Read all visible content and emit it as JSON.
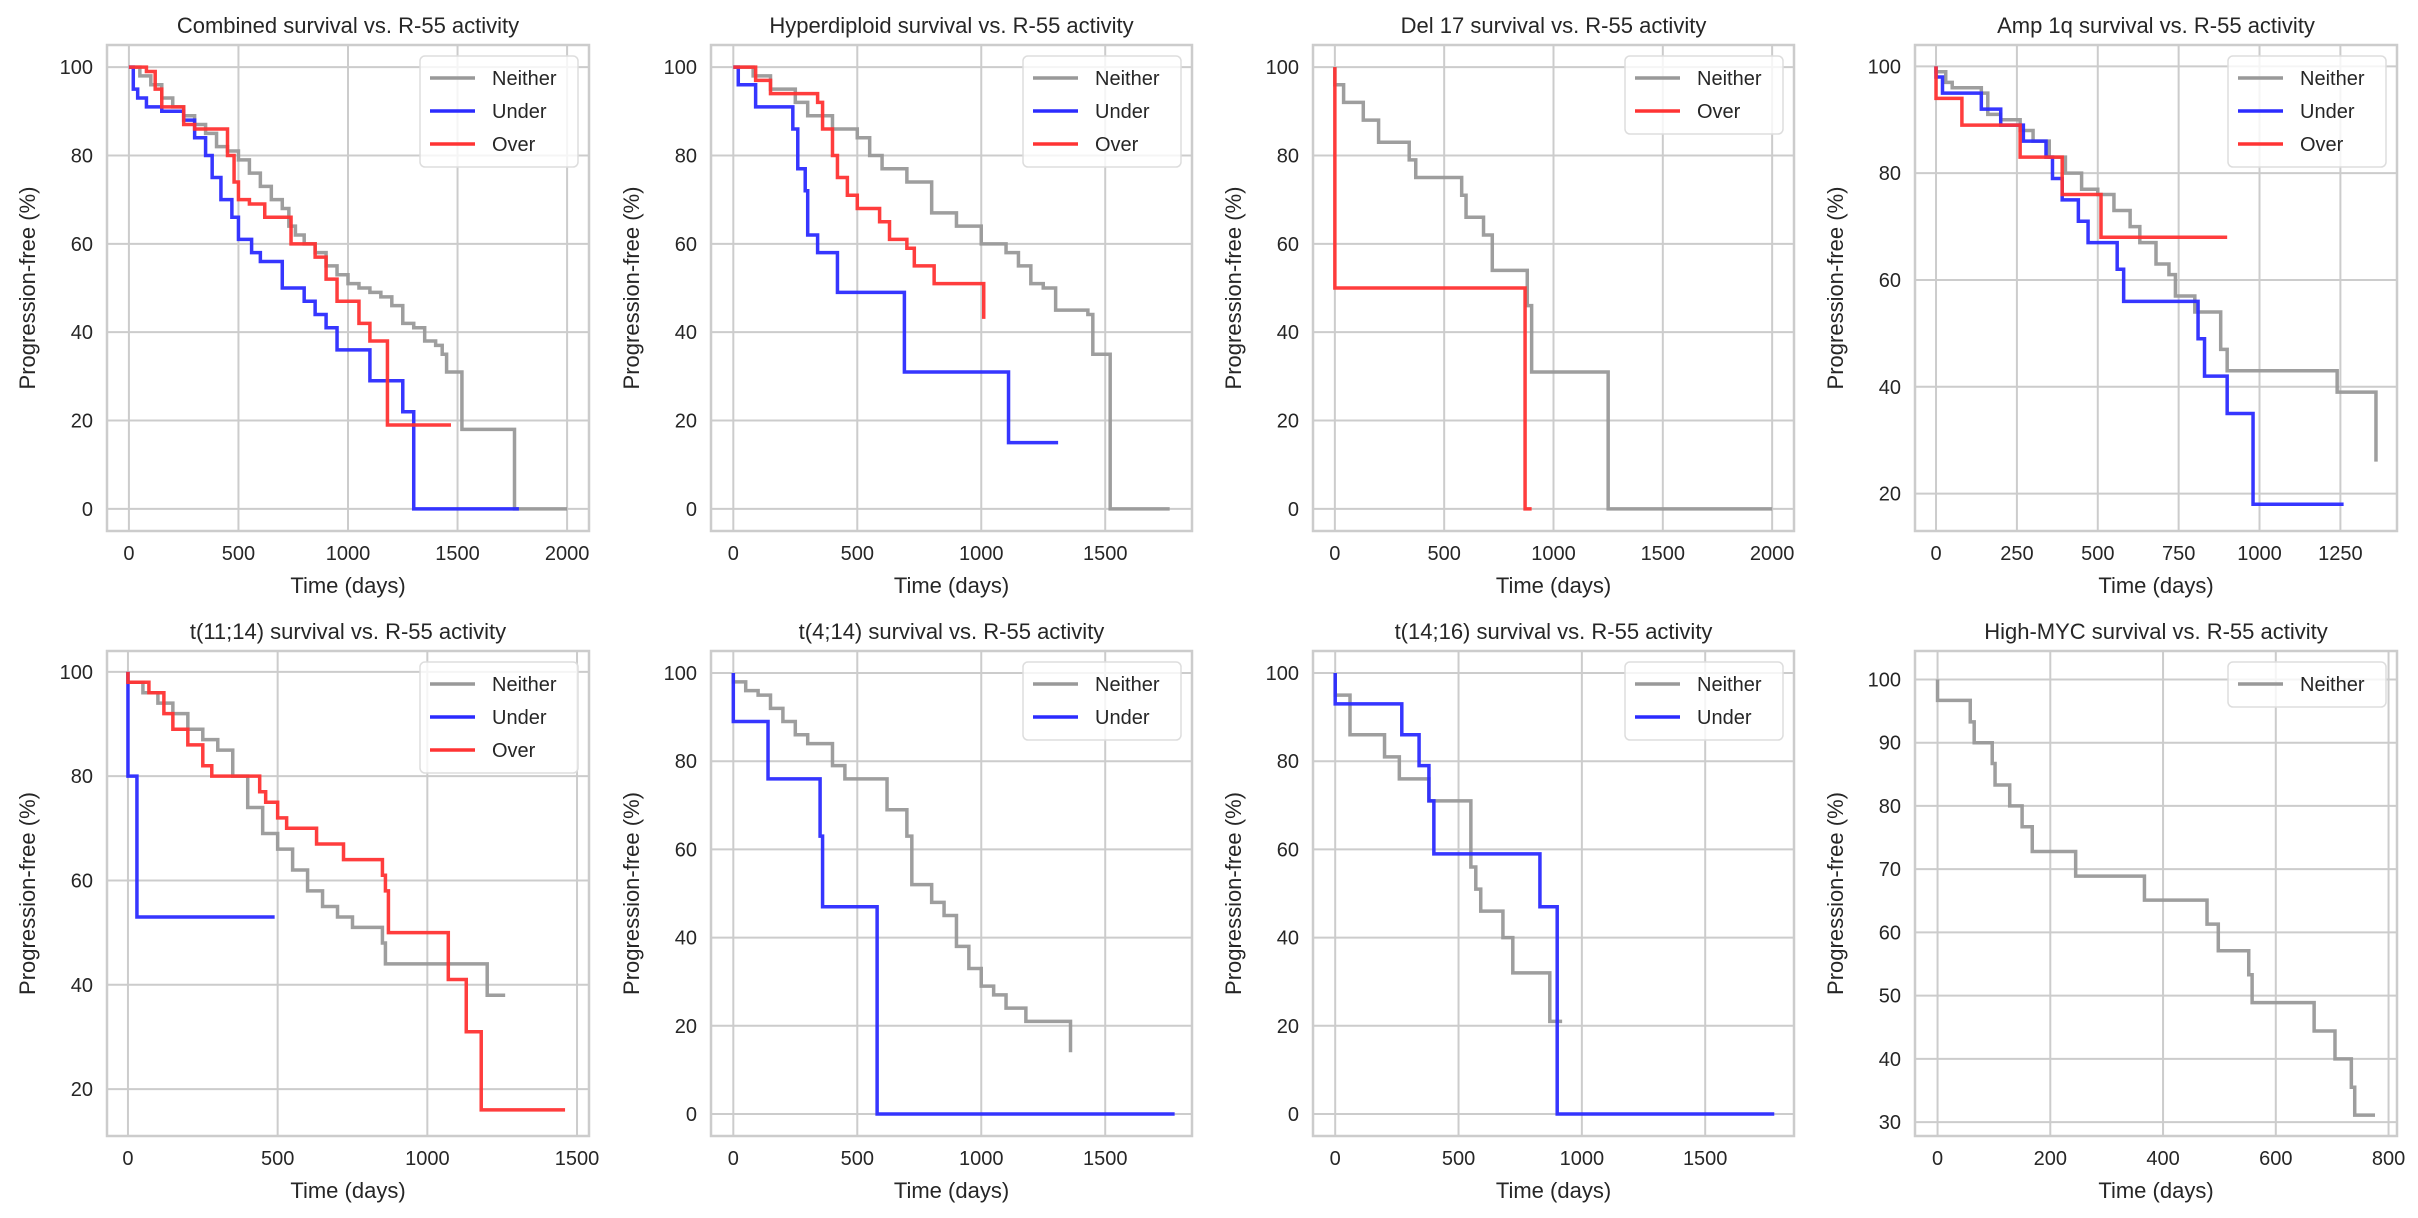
{
  "figure": {
    "colors": {
      "Neither": "#999999",
      "Under": "#2b2bff",
      "Over": "#ff3333",
      "grid": "#cccccc",
      "spine": "#cccccc"
    }
  },
  "chart_data": [
    {
      "type": "line",
      "step": true,
      "title": "Combined survival vs. R-55 activity",
      "xlabel": "Time (days)",
      "ylabel": "Progression-free (%)",
      "xlim": [
        -100,
        2100
      ],
      "ylim": [
        -5,
        105
      ],
      "xticks": [
        0,
        500,
        1000,
        1500,
        2000
      ],
      "yticks": [
        0,
        20,
        40,
        60,
        80,
        100
      ],
      "grid": true,
      "legend": "top-right",
      "series": [
        {
          "name": "Neither",
          "x": [
            0,
            50,
            100,
            150,
            200,
            250,
            300,
            350,
            400,
            450,
            500,
            550,
            600,
            650,
            700,
            730,
            760,
            800,
            850,
            900,
            950,
            1000,
            1050,
            1100,
            1150,
            1200,
            1250,
            1300,
            1350,
            1400,
            1430,
            1450,
            1500,
            1520,
            1760,
            1760,
            2000
          ],
          "y": [
            100,
            98,
            96,
            93,
            91,
            89,
            87,
            85,
            82,
            81,
            79,
            76,
            73,
            70,
            68,
            64,
            62,
            60,
            58,
            55,
            53,
            51,
            50,
            49,
            48,
            46,
            42,
            41,
            38,
            37,
            35,
            31,
            31,
            18,
            18,
            0,
            0
          ]
        },
        {
          "name": "Under",
          "x": [
            0,
            20,
            40,
            80,
            150,
            250,
            300,
            350,
            380,
            420,
            470,
            500,
            560,
            600,
            700,
            800,
            850,
            900,
            950,
            1100,
            1200,
            1250,
            1300,
            1300,
            1780
          ],
          "y": [
            100,
            95,
            93,
            91,
            90,
            88,
            84,
            80,
            75,
            70,
            66,
            61,
            58,
            56,
            50,
            47,
            44,
            41,
            36,
            29,
            29,
            22,
            22,
            0,
            0
          ]
        },
        {
          "name": "Over",
          "x": [
            0,
            80,
            120,
            150,
            250,
            300,
            450,
            480,
            500,
            550,
            620,
            700,
            740,
            850,
            900,
            950,
            1000,
            1050,
            1100,
            1150,
            1180,
            1470
          ],
          "y": [
            100,
            99,
            95,
            91,
            87,
            86,
            80,
            74,
            70,
            69,
            66,
            66,
            60,
            57,
            52,
            47,
            47,
            42,
            38,
            38,
            19,
            19
          ]
        }
      ]
    },
    {
      "type": "line",
      "step": true,
      "title": "Hyperdiploid survival vs. R-55 activity",
      "xlabel": "Time (days)",
      "ylabel": "Progression-free (%)",
      "xlim": [
        -90,
        1850
      ],
      "ylim": [
        -5,
        105
      ],
      "xticks": [
        0,
        500,
        1000,
        1500
      ],
      "yticks": [
        0,
        20,
        40,
        60,
        80,
        100
      ],
      "grid": true,
      "legend": "top-right",
      "series": [
        {
          "name": "Neither",
          "x": [
            0,
            80,
            150,
            250,
            300,
            400,
            500,
            550,
            600,
            700,
            800,
            900,
            1000,
            1100,
            1150,
            1200,
            1250,
            1300,
            1350,
            1430,
            1450,
            1500,
            1520,
            1760
          ],
          "y": [
            100,
            98,
            95,
            92,
            89,
            86,
            84,
            80,
            77,
            74,
            67,
            64,
            60,
            58,
            55,
            51,
            50,
            45,
            45,
            44,
            35,
            35,
            0,
            0
          ]
        },
        {
          "name": "Under",
          "x": [
            0,
            20,
            90,
            240,
            260,
            290,
            300,
            340,
            420,
            690,
            1110,
            1310
          ],
          "y": [
            100,
            96,
            91,
            86,
            77,
            72,
            62,
            58,
            49,
            31,
            15,
            15
          ]
        },
        {
          "name": "Over",
          "x": [
            0,
            90,
            150,
            340,
            360,
            400,
            420,
            460,
            500,
            590,
            630,
            700,
            730,
            810,
            1010
          ],
          "y": [
            100,
            97,
            94,
            92,
            86,
            80,
            75,
            71,
            68,
            65,
            61,
            59,
            55,
            51,
            43
          ]
        }
      ]
    },
    {
      "type": "line",
      "step": true,
      "title": "Del 17 survival vs. R-55 activity",
      "xlabel": "Time (days)",
      "ylabel": "Progression-free (%)",
      "xlim": [
        -100,
        2100
      ],
      "ylim": [
        -5,
        105
      ],
      "xticks": [
        0,
        500,
        1000,
        1500,
        2000
      ],
      "yticks": [
        0,
        20,
        40,
        60,
        80,
        100
      ],
      "grid": true,
      "legend": "top-right",
      "series": [
        {
          "name": "Neither",
          "x": [
            0,
            40,
            130,
            200,
            340,
            370,
            580,
            600,
            680,
            720,
            880,
            900,
            1250,
            2000
          ],
          "y": [
            96,
            92,
            88,
            83,
            79,
            75,
            71,
            66,
            62,
            54,
            46,
            31,
            0,
            0
          ]
        },
        {
          "name": "Over",
          "x": [
            0,
            0,
            870,
            900
          ],
          "y": [
            100,
            50,
            0,
            0
          ]
        }
      ]
    },
    {
      "type": "line",
      "step": true,
      "title": "Amp 1q survival vs. R-55 activity",
      "xlabel": "Time (days)",
      "ylabel": "Progression-free (%)",
      "xlim": [
        -65,
        1425
      ],
      "ylim": [
        13,
        104
      ],
      "xticks": [
        0,
        250,
        500,
        750,
        1000,
        1250
      ],
      "yticks": [
        20,
        40,
        60,
        80,
        100
      ],
      "grid": true,
      "legend": "top-right",
      "series": [
        {
          "name": "Neither",
          "x": [
            0,
            30,
            50,
            140,
            160,
            200,
            260,
            300,
            350,
            400,
            450,
            500,
            550,
            600,
            630,
            680,
            720,
            740,
            800,
            880,
            900,
            1180,
            1240,
            1360
          ],
          "y": [
            99,
            97,
            96,
            95,
            91,
            90,
            88,
            86,
            83,
            80,
            77,
            76,
            73,
            70,
            67,
            63,
            61,
            57,
            54,
            47,
            43,
            43,
            39,
            26
          ]
        },
        {
          "name": "Under",
          "x": [
            0,
            20,
            140,
            200,
            270,
            340,
            360,
            390,
            440,
            470,
            560,
            580,
            810,
            830,
            900,
            980,
            1260
          ],
          "y": [
            98,
            95,
            92,
            89,
            86,
            83,
            79,
            75,
            71,
            67,
            62,
            56,
            49,
            42,
            35,
            18,
            18
          ]
        },
        {
          "name": "Over",
          "x": [
            0,
            80,
            260,
            390,
            510,
            900
          ],
          "y": [
            94,
            89,
            83,
            76,
            68,
            68
          ]
        }
      ]
    },
    {
      "type": "line",
      "step": true,
      "title": "t(11;14) survival vs. R-55 activity",
      "xlabel": "Time (days)",
      "ylabel": "Progression-free (%)",
      "xlim": [
        -70,
        1540
      ],
      "ylim": [
        11,
        104
      ],
      "xticks": [
        0,
        500,
        1000,
        1500
      ],
      "yticks": [
        20,
        40,
        60,
        80,
        100
      ],
      "grid": true,
      "legend": "top-right",
      "series": [
        {
          "name": "Neither",
          "x": [
            0,
            50,
            100,
            150,
            200,
            250,
            300,
            350,
            400,
            450,
            500,
            550,
            600,
            650,
            700,
            750,
            850,
            860,
            1200,
            1260
          ],
          "y": [
            98,
            96,
            94,
            92,
            89,
            87,
            85,
            80,
            74,
            69,
            66,
            62,
            58,
            55,
            53,
            51,
            48,
            44,
            38,
            38
          ]
        },
        {
          "name": "Under",
          "x": [
            0,
            30,
            490
          ],
          "y": [
            80,
            53,
            53
          ]
        },
        {
          "name": "Over",
          "x": [
            0,
            70,
            120,
            150,
            200,
            250,
            280,
            440,
            460,
            500,
            530,
            630,
            720,
            850,
            860,
            870,
            1070,
            1130,
            1180,
            1460
          ],
          "y": [
            98,
            96,
            92,
            89,
            86,
            82,
            80,
            77,
            75,
            72,
            70,
            67,
            64,
            61,
            58,
            50,
            41,
            31,
            16,
            16
          ]
        }
      ]
    },
    {
      "type": "line",
      "step": true,
      "title": "t(4;14) survival vs. R-55 activity",
      "xlabel": "Time (days)",
      "ylabel": "Progression-free (%)",
      "xlim": [
        -90,
        1850
      ],
      "ylim": [
        -5,
        105
      ],
      "xticks": [
        0,
        500,
        1000,
        1500
      ],
      "yticks": [
        0,
        20,
        40,
        60,
        80,
        100
      ],
      "grid": true,
      "legend": "top-right",
      "series": [
        {
          "name": "Neither",
          "x": [
            0,
            50,
            100,
            150,
            200,
            250,
            300,
            350,
            400,
            450,
            600,
            620,
            700,
            720,
            800,
            850,
            900,
            950,
            1000,
            1050,
            1100,
            1180,
            1360
          ],
          "y": [
            98,
            96,
            95,
            92,
            89,
            86,
            84,
            84,
            79,
            76,
            76,
            69,
            63,
            52,
            48,
            45,
            38,
            33,
            29,
            27,
            24,
            21,
            14
          ]
        },
        {
          "name": "Under",
          "x": [
            0,
            140,
            350,
            360,
            580,
            1780
          ],
          "y": [
            89,
            76,
            63,
            47,
            0,
            0
          ]
        }
      ]
    },
    {
      "type": "line",
      "step": true,
      "title": "t(14;16) survival vs. R-55 activity",
      "xlabel": "Time (days)",
      "ylabel": "Progression-free (%)",
      "xlim": [
        -90,
        1860
      ],
      "ylim": [
        -5,
        105
      ],
      "xticks": [
        0,
        500,
        1000,
        1500
      ],
      "yticks": [
        0,
        20,
        40,
        60,
        80,
        100
      ],
      "grid": true,
      "legend": "top-right",
      "series": [
        {
          "name": "Neither",
          "x": [
            0,
            60,
            200,
            260,
            380,
            550,
            570,
            590,
            680,
            720,
            870,
            920
          ],
          "y": [
            95,
            86,
            81,
            76,
            71,
            56,
            51,
            46,
            40,
            32,
            21,
            21
          ]
        },
        {
          "name": "Under",
          "x": [
            0,
            270,
            340,
            380,
            400,
            830,
            900,
            1780
          ],
          "y": [
            93,
            86,
            79,
            71,
            59,
            47,
            0,
            0
          ]
        }
      ]
    },
    {
      "type": "line",
      "step": true,
      "title": "High-MYC survival vs. R-55 activity",
      "xlabel": "Time (days)",
      "ylabel": "Progression-free (%)",
      "xlim": [
        -40,
        815
      ],
      "ylim": [
        27.8,
        104.5
      ],
      "xticks": [
        0,
        200,
        400,
        600,
        800
      ],
      "yticks": [
        30,
        40,
        50,
        60,
        70,
        80,
        90,
        100
      ],
      "grid": true,
      "legend": "top-right",
      "series": [
        {
          "name": "Neither",
          "x": [
            0,
            58,
            65,
            97,
            102,
            128,
            150,
            168,
            245,
            367,
            478,
            498,
            552,
            558,
            668,
            705,
            734,
            740,
            776
          ],
          "y": [
            96.7,
            93.3,
            90,
            86.7,
            83.3,
            80,
            76.7,
            72.8,
            68.9,
            65.1,
            61.3,
            57.1,
            53.3,
            48.9,
            44.4,
            40,
            35.5,
            31.1,
            31.1
          ]
        }
      ]
    }
  ]
}
